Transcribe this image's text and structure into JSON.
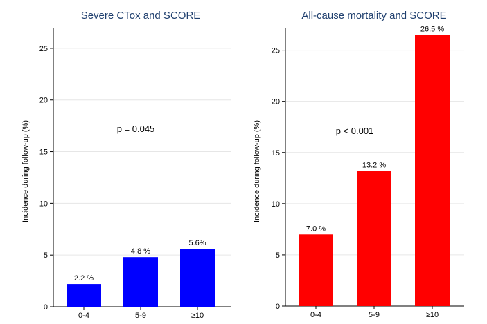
{
  "chart_data": [
    {
      "type": "bar",
      "title": "Severe CTox and SCORE",
      "ylabel": "Incidence during follow-up (%)",
      "xlabel": "",
      "categories": [
        "0-4",
        "5-9",
        "≥10"
      ],
      "values": [
        2.2,
        4.8,
        5.6
      ],
      "data_labels": [
        "2.2 %",
        "4.8 %",
        "5.6%"
      ],
      "yticks": [
        0,
        5,
        10,
        15,
        20,
        25
      ],
      "ylim": [
        0,
        27
      ],
      "grid": true,
      "color": "#0000ff",
      "annotation": "p = 0.045"
    },
    {
      "type": "bar",
      "title": "All-cause mortality and SCORE",
      "ylabel": "Incidence during follow-up (%)",
      "xlabel": "",
      "categories": [
        "0-4",
        "5-9",
        "≥10"
      ],
      "values": [
        7.0,
        13.2,
        26.5
      ],
      "data_labels": [
        "7.0 %",
        "13.2 %",
        "26.5 %"
      ],
      "yticks": [
        0,
        5,
        10,
        15,
        20,
        25
      ],
      "ylim": [
        0,
        27.2
      ],
      "grid": true,
      "color": "#ff0000",
      "annotation": "p < 0.001"
    }
  ]
}
